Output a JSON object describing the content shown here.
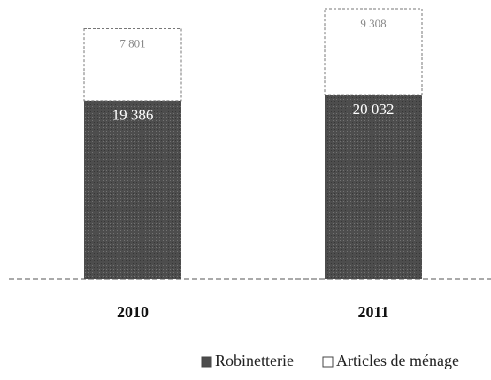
{
  "chart_data": {
    "type": "stacked_bar",
    "categories": [
      "2010",
      "2011"
    ],
    "series": [
      {
        "name": "Robinetterie",
        "color": "#4d4d4d",
        "values": [
          19386,
          20032
        ],
        "value_labels": [
          "19 386",
          "20 032"
        ]
      },
      {
        "name": "Articles de ménage",
        "color": "#ffffff",
        "values": [
          7801,
          9308
        ],
        "value_labels": [
          "7 801",
          "9 308"
        ]
      }
    ],
    "legend": "bottom"
  }
}
